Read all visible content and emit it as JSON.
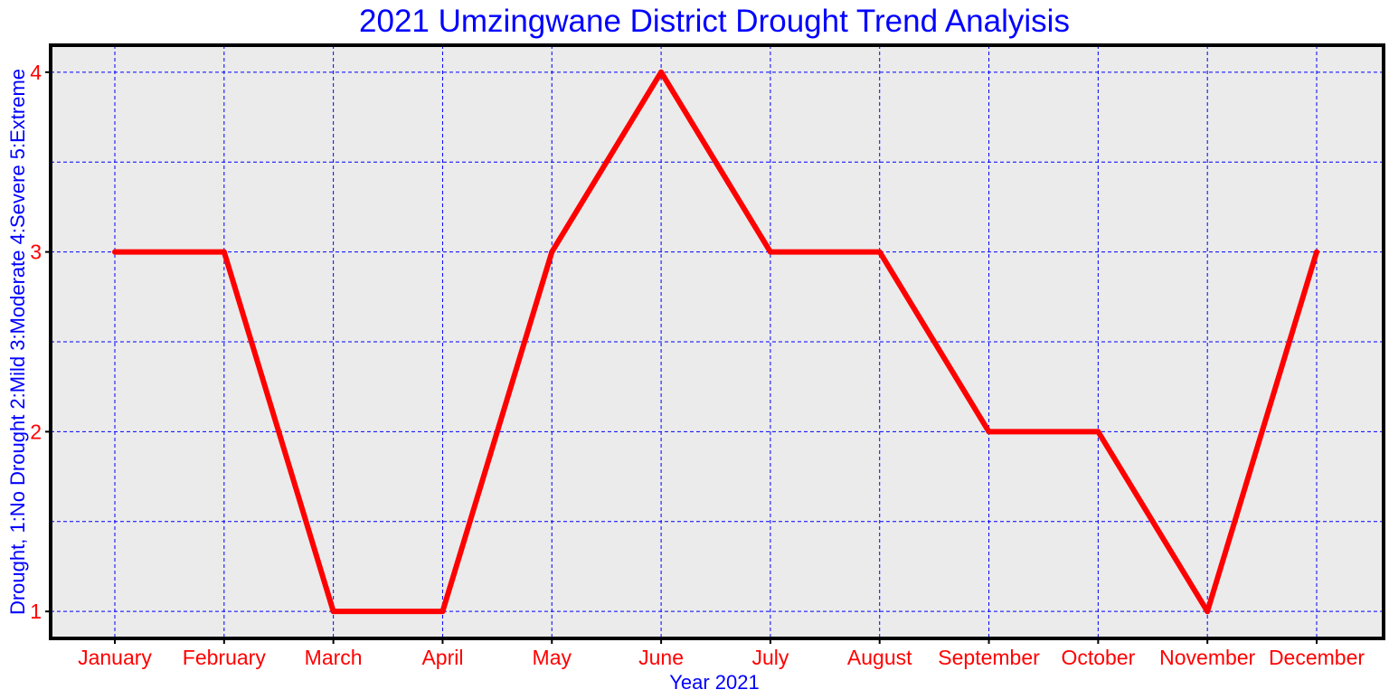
{
  "chart_data": {
    "type": "line",
    "title": "2021 Umzingwane District Drought Trend Analyisis",
    "xlabel": "Year 2021",
    "ylabel": "Drought, 1:No Drought 2:Mild 3:Moderate 4:Severe 5:Extreme",
    "categories": [
      "January",
      "February",
      "March",
      "April",
      "May",
      "June",
      "July",
      "August",
      "September",
      "October",
      "November",
      "December"
    ],
    "series": [
      {
        "values": [
          3,
          3,
          1,
          1,
          3,
          4,
          3,
          3,
          2,
          2,
          1,
          3
        ]
      }
    ],
    "ylim": [
      0.85,
      4.15
    ],
    "yticks": [
      1,
      2,
      3,
      4
    ],
    "ygrid": [
      1,
      1.5,
      2,
      2.5,
      3,
      3.5,
      4
    ],
    "grid": true,
    "legend": "none",
    "colors": {
      "title": "#0000ff",
      "axis_label": "#0000ff",
      "tick_label": "#ff0000",
      "line": "#ff0000",
      "grid": "#0000ff",
      "plot_background": "#ebebeb",
      "frame": "#000000"
    }
  }
}
